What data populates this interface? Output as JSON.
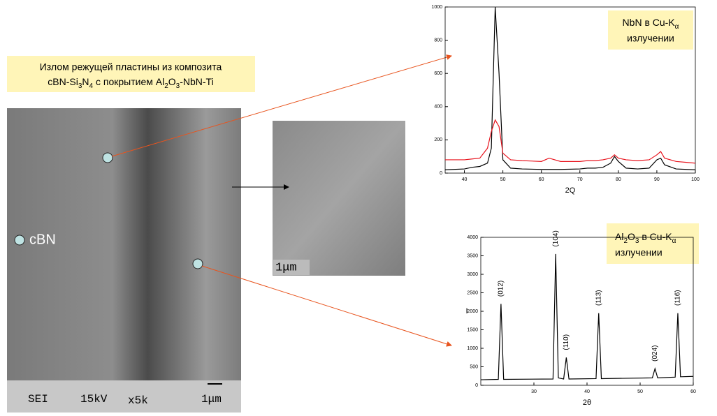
{
  "caption": {
    "line1": "Излом режущей пластины из композита",
    "line2": [
      "cBN-Si",
      "3",
      "N",
      "4",
      " с покрытием Al",
      "2",
      "O",
      "3",
      "-NbN-Ti"
    ]
  },
  "sem": {
    "label": "cBN",
    "bar": [
      "SEI",
      "15kV",
      "x5k",
      "1μm"
    ]
  },
  "inset": {
    "scale": "1μm"
  },
  "notes": [
    {
      "line1": [
        "NbN в Cu-K",
        "α"
      ],
      "line2": "излучении"
    },
    {
      "line1": [
        "Al",
        "2",
        "O",
        "3",
        " в Cu-K",
        "α"
      ],
      "line2": "излучении"
    }
  ],
  "chart_data": [
    {
      "type": "line",
      "x_label": "2Q",
      "xlim": [
        35,
        100
      ],
      "ylim": [
        0,
        1000
      ],
      "xticks": [
        40,
        50,
        60,
        70,
        80,
        90,
        100
      ],
      "yticks": [
        0,
        200,
        400,
        600,
        800,
        1000
      ],
      "x": [
        35,
        40,
        42,
        44,
        46,
        47,
        48,
        49,
        50,
        52,
        55,
        60,
        62,
        65,
        70,
        72,
        74,
        76,
        78,
        79,
        80,
        82,
        85,
        88,
        90,
        91,
        92,
        95,
        100
      ],
      "series": [
        {
          "color": "#000000",
          "values": [
            20,
            25,
            35,
            40,
            60,
            150,
            1000,
            600,
            80,
            30,
            25,
            22,
            22,
            22,
            25,
            30,
            30,
            35,
            60,
            100,
            70,
            30,
            25,
            30,
            80,
            90,
            50,
            25,
            20
          ]
        },
        {
          "color": "#e8141e",
          "values": [
            80,
            80,
            85,
            90,
            150,
            250,
            320,
            280,
            120,
            80,
            75,
            70,
            90,
            70,
            70,
            75,
            75,
            80,
            90,
            110,
            90,
            80,
            75,
            80,
            110,
            130,
            90,
            70,
            60
          ]
        }
      ]
    },
    {
      "type": "line",
      "x_label": "2θ",
      "y_label": "I",
      "xlim": [
        20,
        60
      ],
      "ylim": [
        0,
        4000
      ],
      "xticks": [
        30,
        40,
        50,
        60
      ],
      "yticks": [
        0,
        500,
        1000,
        1500,
        2000,
        2500,
        3000,
        3500,
        4000
      ],
      "x": [
        20,
        23.3,
        23.8,
        24.3,
        33.6,
        34.1,
        34.6,
        35.6,
        36.1,
        36.6,
        41.7,
        42.2,
        42.7,
        52.3,
        52.8,
        53.3,
        56.6,
        57.1,
        57.6,
        60
      ],
      "series": [
        {
          "color": "#000000",
          "values": [
            150,
            160,
            2200,
            160,
            170,
            3550,
            200,
            170,
            750,
            170,
            180,
            1950,
            180,
            200,
            450,
            200,
            220,
            1950,
            230,
            240
          ]
        }
      ],
      "annotations": [
        {
          "text": "(012)",
          "x": 23.8,
          "y": 2200
        },
        {
          "text": "(104)",
          "x": 34.1,
          "y": 3550
        },
        {
          "text": "(110)",
          "x": 36.1,
          "y": 750
        },
        {
          "text": "(113)",
          "x": 42.2,
          "y": 1950
        },
        {
          "text": "(024)",
          "x": 52.8,
          "y": 450
        },
        {
          "text": "(116)",
          "x": 57.1,
          "y": 1950
        }
      ]
    }
  ]
}
